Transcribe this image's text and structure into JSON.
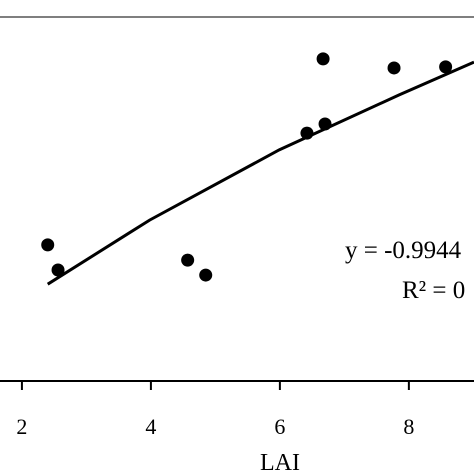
{
  "chart_data": {
    "type": "scatter",
    "x_label": "LAI",
    "xlim": [
      1.66,
      9.01
    ],
    "xticks": [
      2,
      4,
      6,
      8
    ],
    "ylim": [
      0,
      100
    ],
    "series": [
      {
        "type": "scatter",
        "color": "#000000",
        "x": [
          2.4,
          2.56,
          4.57,
          4.85,
          6.42,
          6.67,
          6.7,
          7.77,
          8.57
        ],
        "values": [
          37.4,
          30.5,
          33.2,
          29.1,
          68.1,
          88.5,
          70.6,
          86.0,
          86.3
        ]
      },
      {
        "type": "line",
        "color": "#000000",
        "x": [
          2.4,
          3.98,
          5.99,
          7.85,
          9.01
        ],
        "values": [
          26.6,
          44.2,
          63.5,
          78.6,
          87.6
        ]
      }
    ],
    "annotations": [
      "y = -0.9944",
      "R² = 0"
    ]
  }
}
